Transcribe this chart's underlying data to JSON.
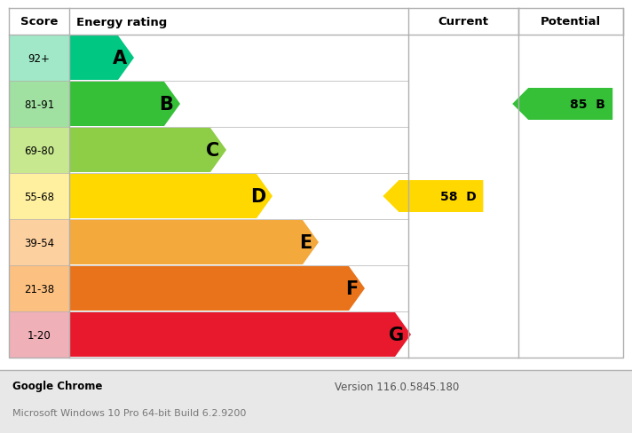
{
  "ratings": [
    "A",
    "B",
    "C",
    "D",
    "E",
    "F",
    "G"
  ],
  "scores": [
    "92+",
    "81-91",
    "69-80",
    "55-68",
    "39-54",
    "21-38",
    "1-20"
  ],
  "bar_colors": [
    "#00c781",
    "#35c038",
    "#8dce46",
    "#ffd800",
    "#f4a93c",
    "#e8731a",
    "#e8192c"
  ],
  "score_bg_colors": [
    "#a0e8c8",
    "#a0e0a0",
    "#c8e890",
    "#fff0a0",
    "#fdd0a0",
    "#fcc080",
    "#f0b0b8"
  ],
  "bar_widths_rel": [
    1,
    2,
    3,
    4,
    5,
    6,
    7
  ],
  "current_rating": {
    "value": 58,
    "label": "D",
    "color": "#ffd800",
    "row": 3
  },
  "potential_rating": {
    "value": 85,
    "label": "B",
    "color": "#35c038",
    "row": 1
  },
  "header_score": "Score",
  "header_energy": "Energy rating",
  "header_current": "Current",
  "header_potential": "Potential",
  "footer_left": "Google Chrome",
  "footer_version": "Version 116.0.5845.180",
  "footer_os": "Microsoft Windows 10 Pro 64-bit Build 6.2.9200",
  "bg_color": "#ffffff",
  "footer_bg": "#e8e8e8",
  "border_color": "#b0b0b0",
  "header_border": "#999999"
}
